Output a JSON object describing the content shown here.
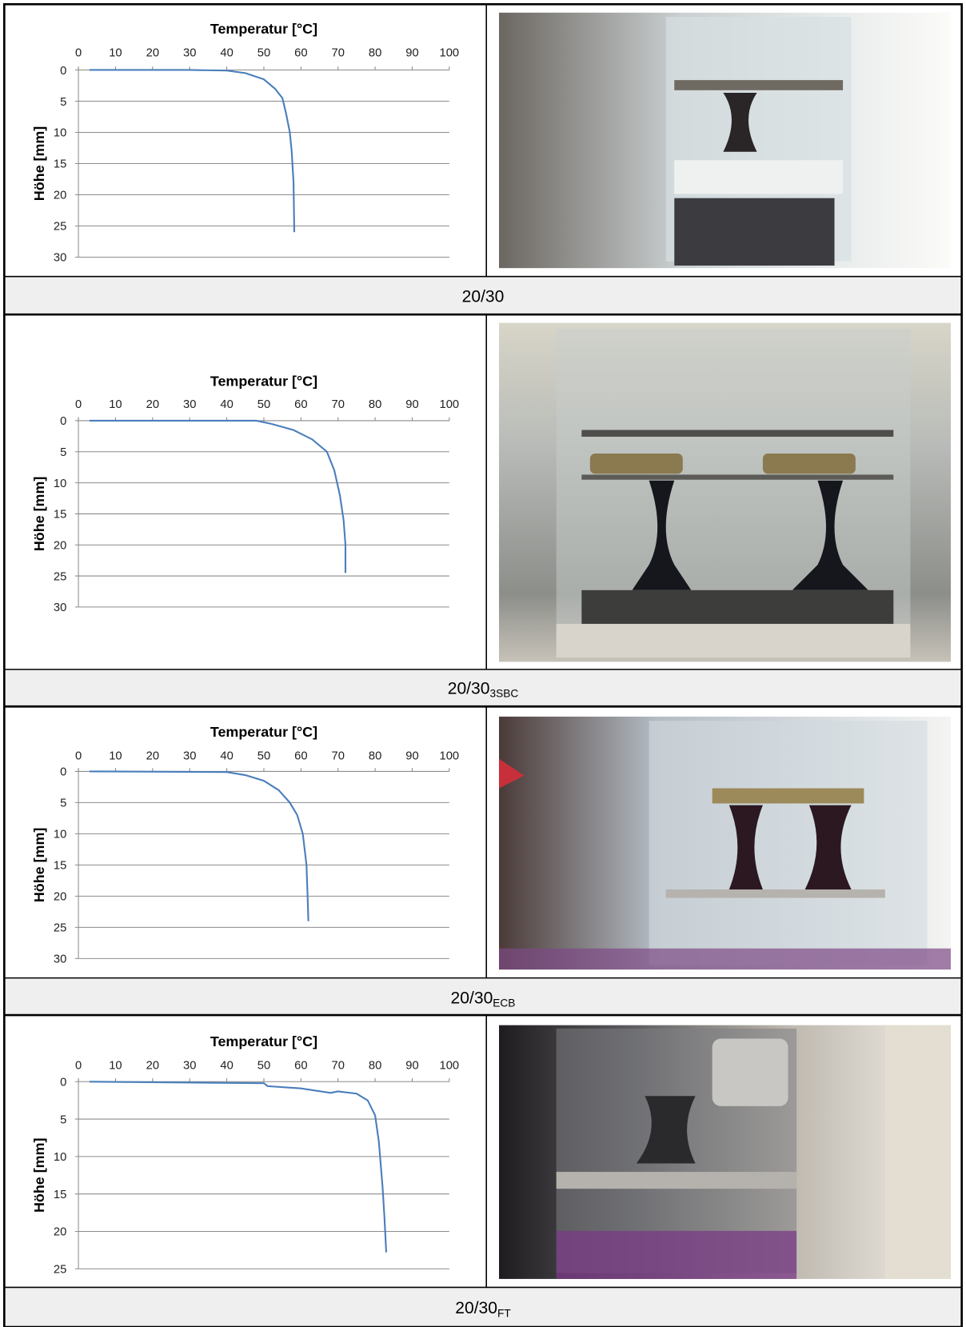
{
  "chart_data": [
    {
      "type": "line",
      "title": "Temperatur [°C]",
      "y_label": "Höhe [mm]",
      "y_inverted": true,
      "grid": true,
      "xlim": [
        0,
        100
      ],
      "xticks": [
        0,
        10,
        20,
        30,
        40,
        50,
        60,
        70,
        80,
        90,
        100
      ],
      "ylim": [
        0,
        30
      ],
      "yticks": [
        0,
        5,
        10,
        15,
        20,
        25,
        30
      ],
      "series": [
        {
          "color": "#4a7ebb",
          "x": [
            3,
            30,
            40,
            45,
            50,
            53,
            55,
            56,
            57,
            57.5,
            58,
            58.2
          ],
          "values": [
            0,
            0,
            0.1,
            0.5,
            1.5,
            3,
            4.5,
            7,
            10,
            13,
            18,
            26
          ]
        }
      ]
    },
    {
      "type": "line",
      "title": "Temperatur [°C]",
      "y_label": "Höhe [mm]",
      "y_inverted": true,
      "grid": true,
      "xlim": [
        0,
        100
      ],
      "xticks": [
        0,
        10,
        20,
        30,
        40,
        50,
        60,
        70,
        80,
        90,
        100
      ],
      "ylim": [
        0,
        30
      ],
      "yticks": [
        0,
        5,
        10,
        15,
        20,
        25,
        30
      ],
      "series": [
        {
          "color": "#4a7ebb",
          "x": [
            3,
            48,
            52,
            58,
            63,
            67,
            69,
            70.5,
            71.5,
            72,
            72
          ],
          "values": [
            0,
            0,
            0.5,
            1.5,
            3,
            5,
            8,
            12,
            16,
            20,
            24.5
          ]
        }
      ]
    },
    {
      "type": "line",
      "title": "Temperatur [°C]",
      "y_label": "Höhe [mm]",
      "y_inverted": true,
      "grid": true,
      "xlim": [
        0,
        100
      ],
      "xticks": [
        0,
        10,
        20,
        30,
        40,
        50,
        60,
        70,
        80,
        90,
        100
      ],
      "ylim": [
        0,
        30
      ],
      "yticks": [
        0,
        5,
        10,
        15,
        20,
        25,
        30
      ],
      "series": [
        {
          "color": "#4a7ebb",
          "x": [
            3,
            40,
            45,
            50,
            54,
            57,
            59,
            60.5,
            61.5,
            61.8,
            62
          ],
          "values": [
            0,
            0.1,
            0.6,
            1.5,
            3,
            5,
            7,
            10,
            15,
            20,
            24
          ]
        }
      ]
    },
    {
      "type": "line",
      "title": "Temperatur [°C]",
      "y_label": "Höhe [mm]",
      "y_inverted": true,
      "grid": true,
      "xlim": [
        0,
        100
      ],
      "xticks": [
        0,
        10,
        20,
        30,
        40,
        50,
        60,
        70,
        80,
        90,
        100
      ],
      "ylim": [
        0,
        25
      ],
      "yticks": [
        0,
        5,
        10,
        15,
        20,
        25
      ],
      "series": [
        {
          "color": "#4a7ebb",
          "x": [
            3,
            50,
            51,
            60,
            68,
            70,
            75,
            78,
            80,
            81,
            82,
            82.5,
            83
          ],
          "values": [
            0,
            0.2,
            0.6,
            0.9,
            1.5,
            1.3,
            1.6,
            2.5,
            4.5,
            8,
            14,
            18,
            22.8
          ]
        }
      ]
    }
  ],
  "captions": [
    {
      "text": "20/30"
    },
    {
      "text": "20/30",
      "subscript": "3SBC"
    },
    {
      "text": "20/30",
      "subscript": "ECB"
    },
    {
      "text": "20/30",
      "subscript": "FT"
    }
  ]
}
